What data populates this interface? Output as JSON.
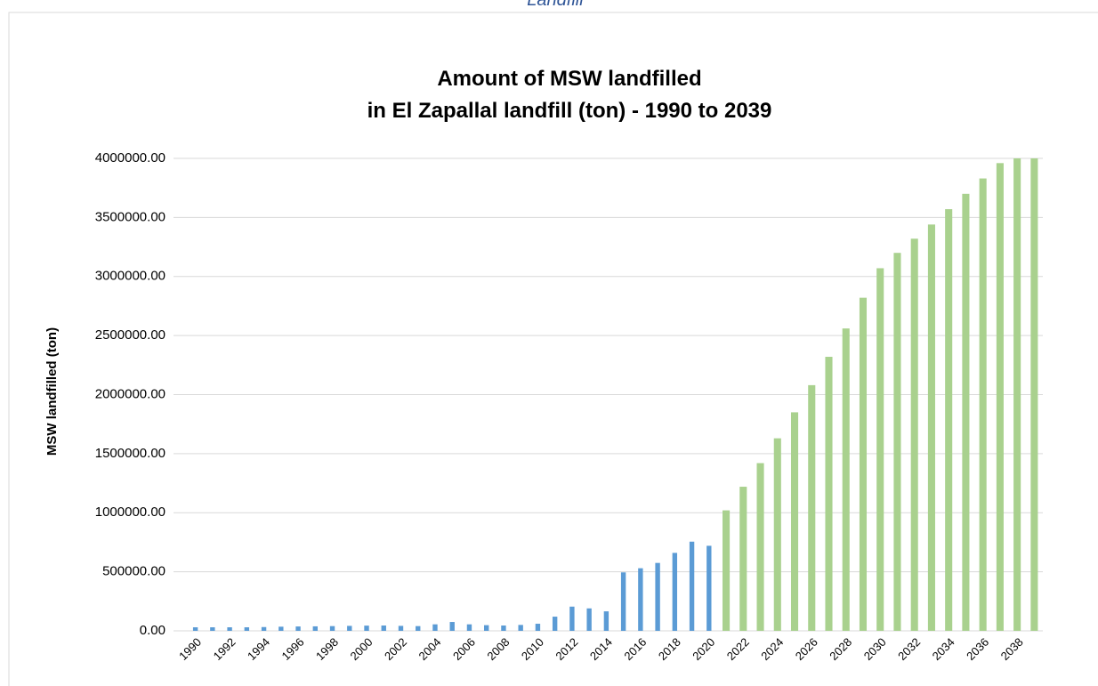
{
  "page_caption": "Landfill",
  "chart_data": {
    "type": "bar",
    "title": [
      "Amount of MSW landfilled",
      "in El Zapallal landfill (ton) - 1990 to 2039"
    ],
    "y_label": "MSW landfilled (ton)",
    "categories": [
      "1990",
      null,
      "1992",
      null,
      "1994",
      null,
      "1996",
      null,
      "1998",
      null,
      "2000",
      null,
      "2002",
      null,
      "2004",
      null,
      "2006",
      null,
      "2008",
      null,
      "2010",
      null,
      "2012",
      null,
      "2014",
      null,
      "2016",
      null,
      "2018",
      null,
      "2020",
      null,
      "2022",
      null,
      "2024",
      null,
      "2026",
      null,
      "2028",
      null,
      "2030",
      null,
      "2032",
      null,
      "2034",
      null,
      "2036",
      null,
      "2038",
      null
    ],
    "series": [
      {
        "color": "#5b9bd5",
        "values": [
          30000,
          30000,
          30000,
          30000,
          32000,
          35000,
          37000,
          38000,
          40000,
          42000,
          44000,
          45000,
          42000,
          40000,
          55000,
          75000,
          55000,
          48000,
          45000,
          50000,
          60000,
          120000,
          205000,
          190000,
          165000,
          495000,
          530000,
          575000,
          660000,
          755000,
          720000,
          null,
          null,
          null,
          null,
          null,
          null,
          null,
          null,
          null,
          null,
          null,
          null,
          null,
          null,
          null,
          null,
          null,
          null,
          null
        ]
      },
      {
        "color": "#a9d18e",
        "values": [
          null,
          null,
          null,
          null,
          null,
          null,
          null,
          null,
          null,
          null,
          null,
          null,
          null,
          null,
          null,
          null,
          null,
          null,
          null,
          null,
          null,
          null,
          null,
          null,
          null,
          null,
          null,
          null,
          null,
          null,
          null,
          1020000,
          1220000,
          1420000,
          1630000,
          1850000,
          2080000,
          2320000,
          2560000,
          2820000,
          3070000,
          3200000,
          3320000,
          3440000,
          3570000,
          3700000,
          3830000,
          3960000,
          4000000,
          4000000
        ]
      }
    ],
    "ylim": [
      0,
      4000000
    ],
    "yticks": [
      {
        "value": 0,
        "label": "0.00"
      },
      {
        "value": 500000,
        "label": "500000.00"
      },
      {
        "value": 1000000,
        "label": "1000000.00"
      },
      {
        "value": 1500000,
        "label": "1500000.00"
      },
      {
        "value": 2000000,
        "label": "2000000.00"
      },
      {
        "value": 2500000,
        "label": "2500000.00"
      },
      {
        "value": 3000000,
        "label": "3000000.00"
      },
      {
        "value": 3500000,
        "label": "3500000.00"
      },
      {
        "value": 4000000,
        "label": "4000000.00"
      }
    ],
    "grid": true
  }
}
